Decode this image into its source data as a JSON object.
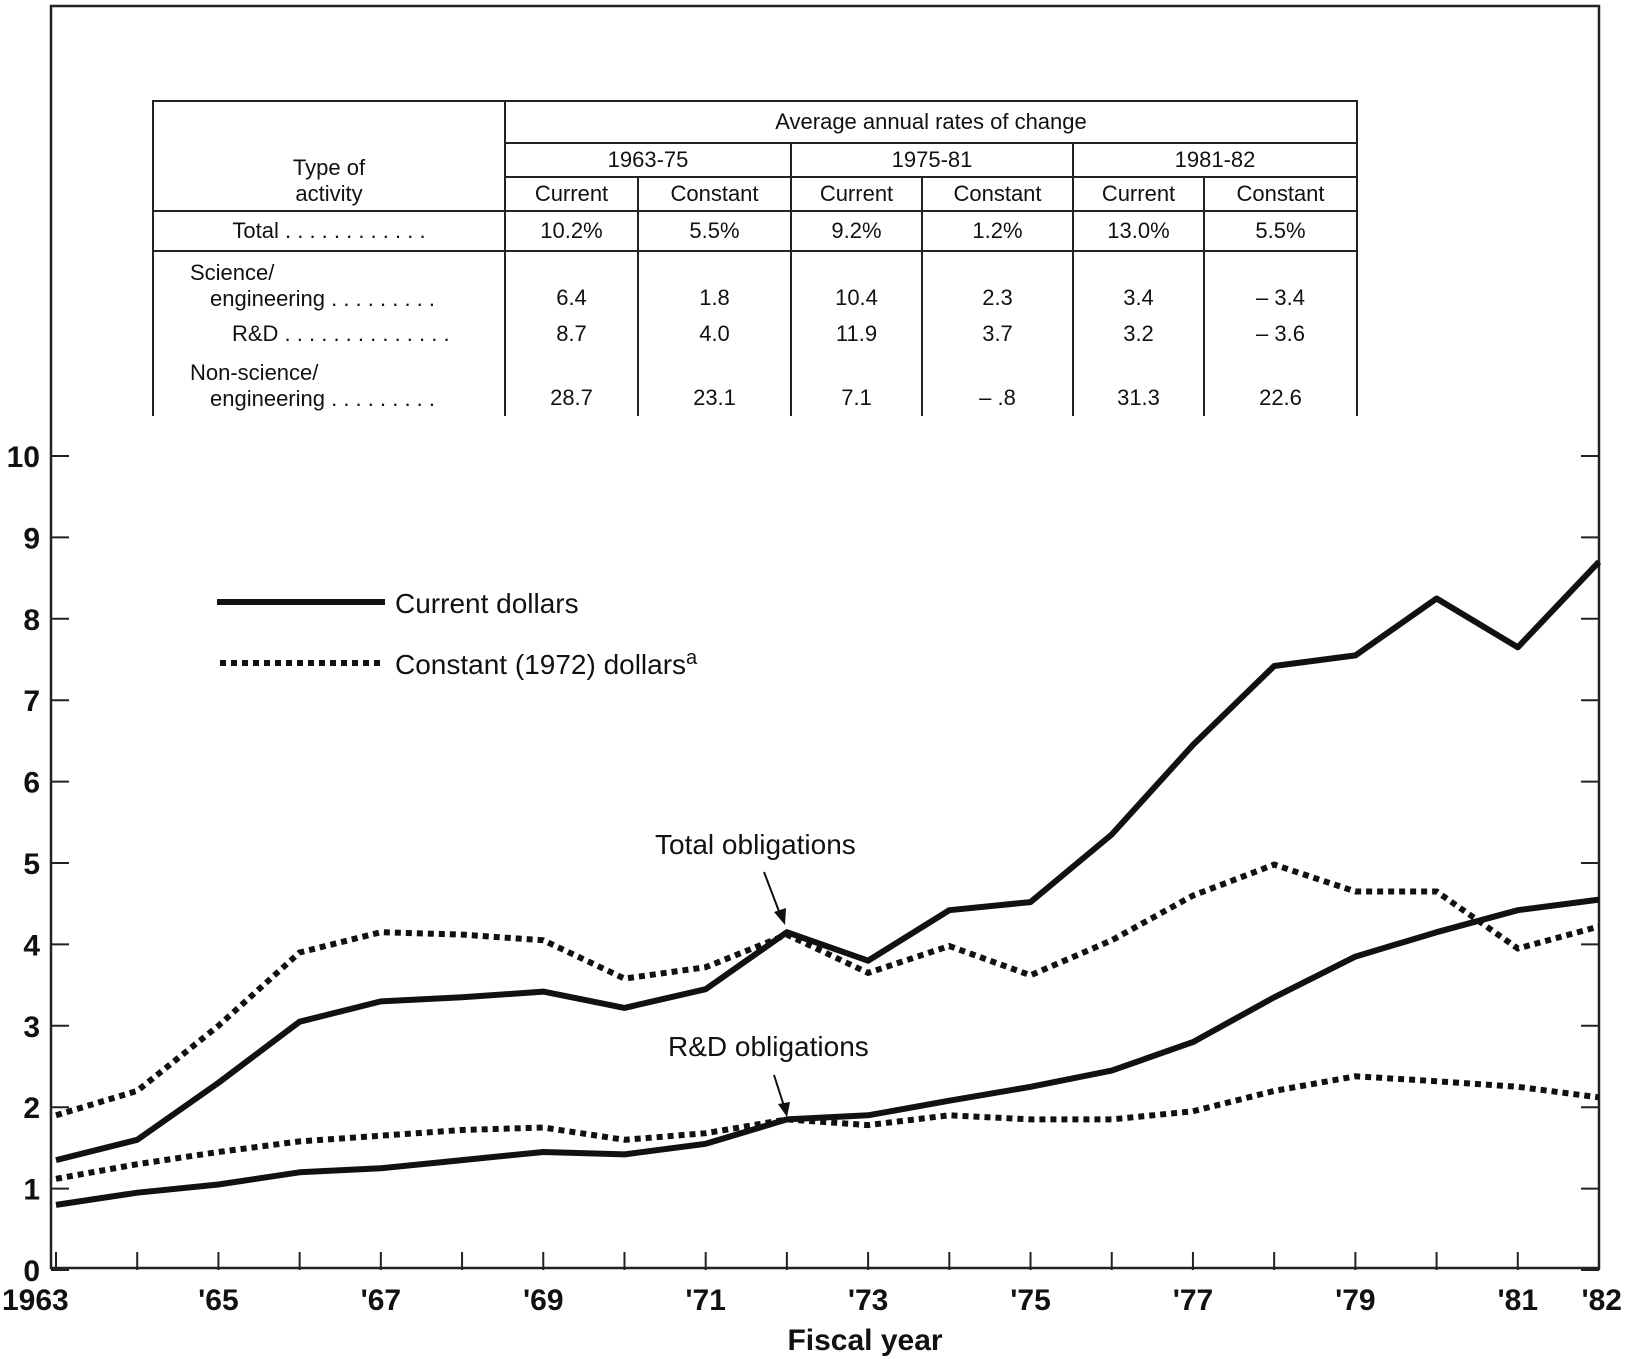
{
  "chart_data": {
    "type": "line",
    "xlabel": "Fiscal year",
    "ylabel": "",
    "ylim": [
      0,
      10
    ],
    "yticks": [
      "0",
      "1",
      "2",
      "3",
      "4",
      "5",
      "6",
      "7",
      "8",
      "9",
      "10"
    ],
    "x": [
      1963,
      1964,
      1965,
      1966,
      1967,
      1968,
      1969,
      1970,
      1971,
      1972,
      1973,
      1974,
      1975,
      1976,
      1977,
      1978,
      1979,
      1980,
      1981,
      1982
    ],
    "xtick_labels": [
      {
        "year": 1963,
        "label": "1963"
      },
      {
        "year": 1965,
        "label": "'65"
      },
      {
        "year": 1967,
        "label": "'67"
      },
      {
        "year": 1969,
        "label": "'69"
      },
      {
        "year": 1971,
        "label": "'71"
      },
      {
        "year": 1973,
        "label": "'73"
      },
      {
        "year": 1975,
        "label": "'75"
      },
      {
        "year": 1977,
        "label": "'77"
      },
      {
        "year": 1979,
        "label": "'79"
      },
      {
        "year": 1981,
        "label": "'81"
      },
      {
        "year": 1982,
        "label": "'82"
      }
    ],
    "legend": [
      {
        "label": "Current dollars",
        "style": "solid"
      },
      {
        "label": "Constant (1972) dollars",
        "sup": "a",
        "style": "dotted"
      }
    ],
    "series": [
      {
        "group": "Total obligations",
        "style": "solid",
        "values": [
          1.35,
          1.6,
          2.3,
          3.05,
          3.3,
          3.35,
          3.42,
          3.22,
          3.45,
          4.15,
          3.8,
          4.42,
          4.52,
          5.35,
          6.45,
          7.42,
          7.55,
          8.25,
          7.65,
          8.7
        ]
      },
      {
        "group": "Total obligations",
        "style": "dotted",
        "values": [
          1.9,
          2.2,
          3.0,
          3.9,
          4.15,
          4.12,
          4.05,
          3.58,
          3.72,
          4.12,
          3.65,
          3.98,
          3.62,
          4.05,
          4.6,
          4.98,
          4.65,
          4.65,
          3.95,
          4.22
        ]
      },
      {
        "group": "R&D obligations",
        "style": "solid",
        "values": [
          0.8,
          0.95,
          1.05,
          1.2,
          1.25,
          1.35,
          1.45,
          1.42,
          1.55,
          1.85,
          1.9,
          2.08,
          2.25,
          2.45,
          2.8,
          3.35,
          3.85,
          4.15,
          4.42,
          4.55
        ]
      },
      {
        "group": "R&D obligations",
        "style": "dotted",
        "values": [
          1.12,
          1.3,
          1.45,
          1.58,
          1.65,
          1.72,
          1.75,
          1.6,
          1.68,
          1.85,
          1.78,
          1.9,
          1.85,
          1.85,
          1.95,
          2.2,
          2.38,
          2.32,
          2.25,
          2.12
        ]
      }
    ],
    "annotations": [
      {
        "text": "Total obligations",
        "target_year": 1972,
        "target_value": 4.15
      },
      {
        "text": "R&D obligations",
        "target_year": 1972,
        "target_value": 1.85
      }
    ]
  },
  "table": {
    "type_header_1": "Type of",
    "type_header_2": "activity",
    "main_header": "Average annual rates of change",
    "periods": [
      "1963-75",
      "1975-81",
      "1981-82"
    ],
    "subheaders": [
      "Current",
      "Constant",
      "Current",
      "Constant",
      "Current",
      "Constant"
    ],
    "rows": [
      {
        "label_1": "Total . . . . . . . . . . . .",
        "label_2": "",
        "values": [
          "10.2%",
          "5.5%",
          "9.2%",
          "1.2%",
          "13.0%",
          "5.5%"
        ]
      },
      {
        "label_1": "Science/",
        "label_2": "engineering . . . . . . . . .",
        "values": [
          "6.4",
          "1.8",
          "10.4",
          "2.3",
          "3.4",
          "– 3.4"
        ]
      },
      {
        "label_1": "R&D . . . . . . . . . . . . . .",
        "label_2": "",
        "values": [
          "8.7",
          "4.0",
          "11.9",
          "3.7",
          "3.2",
          "– 3.6"
        ]
      },
      {
        "label_1": "Non-science/",
        "label_2": "engineering . . . . . . . . .",
        "values": [
          "28.7",
          "23.1",
          "7.1",
          "– .8",
          "31.3",
          "22.6"
        ]
      }
    ]
  }
}
